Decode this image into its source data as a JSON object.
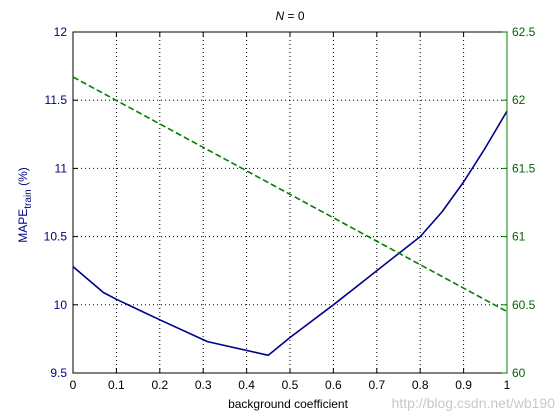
{
  "chart_data": {
    "type": "line",
    "title_var": "N",
    "title_rest": " = 0",
    "xlabel": "background coefficient",
    "ylabel_main": "MAPE",
    "ylabel_sub": "train",
    "ylabel_unit": " (%)",
    "xlim": [
      0,
      1
    ],
    "ylim_left": [
      9.5,
      12
    ],
    "ylim_right": [
      60,
      62.5
    ],
    "grid": true,
    "x_ticks": [
      "0",
      "0.1",
      "0.2",
      "0.3",
      "0.4",
      "0.5",
      "0.6",
      "0.7",
      "0.8",
      "0.9",
      "1"
    ],
    "y_left_ticks": [
      "9.5",
      "10",
      "10.5",
      "11",
      "11.5",
      "12"
    ],
    "y_right_ticks": [
      "60",
      "60.5",
      "61",
      "61.5",
      "62",
      "62.5"
    ],
    "series": [
      {
        "axis": "left",
        "color": "#00008B",
        "style": "solid",
        "x": [
          0,
          0.07,
          0.1,
          0.2,
          0.31,
          0.45,
          0.5,
          0.6,
          0.7,
          0.8,
          0.85,
          0.9,
          0.95,
          1.0
        ],
        "y": [
          10.28,
          10.09,
          10.04,
          9.89,
          9.73,
          9.63,
          9.76,
          10.0,
          10.25,
          10.5,
          10.68,
          10.9,
          11.15,
          11.42
        ]
      },
      {
        "axis": "right",
        "color": "#008000",
        "style": "dashed",
        "x": [
          0,
          1
        ],
        "y": [
          62.17,
          60.45
        ]
      }
    ]
  },
  "watermark": "http://blog.csdn.net/wb190"
}
